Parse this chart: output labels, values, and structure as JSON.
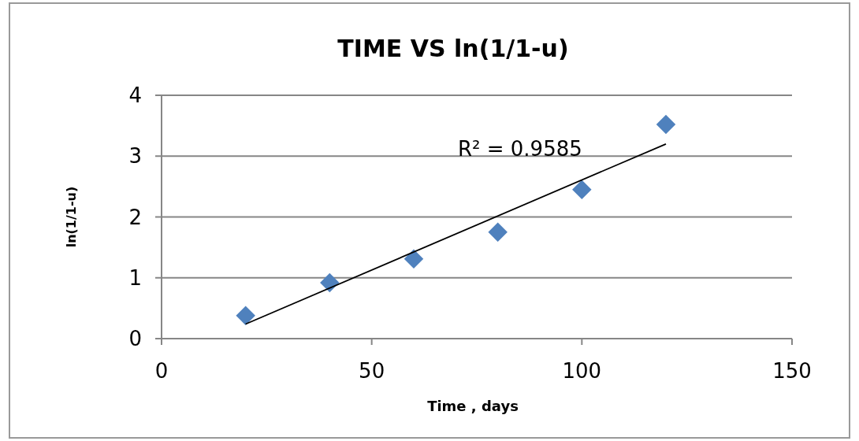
{
  "chart_data": {
    "type": "scatter",
    "title": "TIME VS ln(1/1-u)",
    "xlabel": "Time , days",
    "ylabel": "ln(1/1-u)",
    "x": [
      20,
      40,
      60,
      80,
      100,
      120
    ],
    "series": [
      {
        "color": "#4f81bd",
        "marker": "diamond",
        "values": [
          0.38,
          0.92,
          1.31,
          1.75,
          2.45,
          3.52
        ]
      },
      {
        "type": "line",
        "color": "#000000",
        "x": [
          20,
          120
        ],
        "values": [
          0.24,
          3.2
        ]
      }
    ],
    "xlim": [
      0,
      150
    ],
    "xticks": [
      0,
      50,
      100,
      150
    ],
    "ylim": [
      0,
      4
    ],
    "yticks": [
      0,
      1,
      2,
      3,
      4
    ],
    "grid": "y",
    "line_style": "solid",
    "annotations": [
      "R² = 0.9585"
    ]
  }
}
